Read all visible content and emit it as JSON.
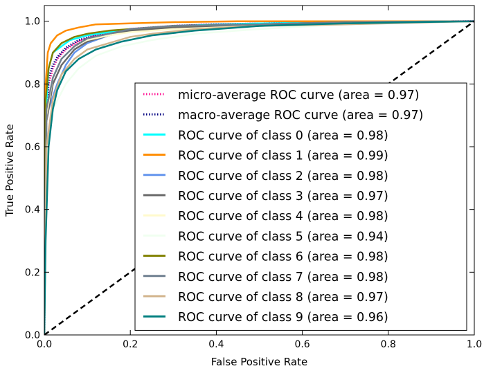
{
  "chart_data": {
    "type": "line",
    "title": "",
    "xlabel": "False Positive Rate",
    "ylabel": "True Positive Rate",
    "xlim": [
      0.0,
      1.0
    ],
    "ylim": [
      0.0,
      1.05
    ],
    "xticks": [
      "0.0",
      "0.2",
      "0.4",
      "0.6",
      "0.8",
      "1.0"
    ],
    "yticks": [
      "0.0",
      "0.2",
      "0.4",
      "0.6",
      "0.8",
      "1.0"
    ],
    "grid": false,
    "legend_position": "lower-right",
    "diagonal": {
      "x": [
        0,
        1
      ],
      "y": [
        0,
        1
      ],
      "color": "#000000",
      "style": "dashed"
    },
    "series": [
      {
        "name": "micro-average ROC curve (area = 0.97)",
        "color": "#ff1493",
        "style": "dotted",
        "x": [
          0,
          0.002,
          0.01,
          0.02,
          0.03,
          0.05,
          0.08,
          0.12,
          0.16,
          0.2,
          0.3,
          0.4,
          0.6,
          0.8,
          1.0
        ],
        "y": [
          0,
          0.62,
          0.8,
          0.85,
          0.88,
          0.91,
          0.935,
          0.955,
          0.965,
          0.975,
          0.985,
          0.99,
          0.995,
          0.998,
          1.0
        ]
      },
      {
        "name": "macro-average ROC curve (area = 0.97)",
        "color": "#000080",
        "style": "dotted",
        "x": [
          0,
          0.002,
          0.01,
          0.02,
          0.03,
          0.05,
          0.08,
          0.12,
          0.16,
          0.2,
          0.3,
          0.4,
          0.6,
          0.8,
          1.0
        ],
        "y": [
          0,
          0.6,
          0.82,
          0.86,
          0.885,
          0.915,
          0.94,
          0.955,
          0.965,
          0.975,
          0.985,
          0.99,
          0.995,
          0.998,
          1.0
        ]
      },
      {
        "name": "ROC curve of class 0 (area = 0.98)",
        "color": "#00ffff",
        "style": "solid",
        "x": [
          0,
          0.003,
          0.01,
          0.02,
          0.04,
          0.06,
          0.1,
          0.15,
          0.2,
          0.3,
          0.5,
          0.7,
          1.0
        ],
        "y": [
          0,
          0.7,
          0.85,
          0.9,
          0.92,
          0.94,
          0.955,
          0.965,
          0.975,
          0.985,
          0.993,
          0.997,
          1.0
        ]
      },
      {
        "name": "ROC curve of class 1 (area = 0.99)",
        "color": "#ff8c00",
        "style": "solid",
        "x": [
          0,
          0.003,
          0.008,
          0.015,
          0.03,
          0.05,
          0.08,
          0.12,
          0.2,
          0.3,
          0.45,
          1.0
        ],
        "y": [
          0,
          0.8,
          0.9,
          0.93,
          0.955,
          0.97,
          0.98,
          0.99,
          0.993,
          0.997,
          1.0,
          1.0
        ]
      },
      {
        "name": "ROC curve of class 2 (area = 0.98)",
        "color": "#6495ed",
        "style": "solid",
        "x": [
          0,
          0.005,
          0.02,
          0.03,
          0.05,
          0.07,
          0.1,
          0.15,
          0.2,
          0.3,
          0.5,
          0.7,
          1.0
        ],
        "y": [
          0,
          0.7,
          0.76,
          0.8,
          0.86,
          0.9,
          0.93,
          0.955,
          0.97,
          0.98,
          0.99,
          0.997,
          1.0
        ]
      },
      {
        "name": "ROC curve of class 3 (area = 0.97)",
        "color": "#696969",
        "style": "solid",
        "x": [
          0,
          0.005,
          0.02,
          0.04,
          0.07,
          0.1,
          0.15,
          0.2,
          0.3,
          0.5,
          0.7,
          1.0
        ],
        "y": [
          0,
          0.68,
          0.8,
          0.86,
          0.91,
          0.935,
          0.955,
          0.97,
          0.98,
          0.99,
          0.995,
          1.0
        ]
      },
      {
        "name": "ROC curve of class 4 (area = 0.98)",
        "color": "#fffacd",
        "style": "solid",
        "x": [
          0,
          0.005,
          0.02,
          0.04,
          0.07,
          0.1,
          0.15,
          0.2,
          0.3,
          0.5,
          0.7,
          1.0
        ],
        "y": [
          0,
          0.7,
          0.82,
          0.88,
          0.92,
          0.94,
          0.955,
          0.965,
          0.975,
          0.985,
          0.995,
          1.0
        ]
      },
      {
        "name": "ROC curve of class 5 (area = 0.94)",
        "color": "#f0fff0",
        "style": "solid",
        "x": [
          0,
          0.005,
          0.02,
          0.05,
          0.08,
          0.12,
          0.18,
          0.25,
          0.35,
          0.5,
          0.7,
          1.0
        ],
        "y": [
          0,
          0.55,
          0.72,
          0.8,
          0.85,
          0.89,
          0.92,
          0.94,
          0.96,
          0.975,
          0.99,
          1.0
        ]
      },
      {
        "name": "ROC curve of class 6 (area = 0.98)",
        "color": "#808000",
        "style": "solid",
        "x": [
          0,
          0.003,
          0.01,
          0.02,
          0.04,
          0.07,
          0.1,
          0.15,
          0.2,
          0.3,
          0.5,
          0.7,
          1.0
        ],
        "y": [
          0,
          0.75,
          0.85,
          0.9,
          0.93,
          0.95,
          0.96,
          0.97,
          0.975,
          0.985,
          0.99,
          0.997,
          1.0
        ]
      },
      {
        "name": "ROC curve of class 7 (area = 0.98)",
        "color": "#708090",
        "style": "solid",
        "x": [
          0,
          0.005,
          0.02,
          0.04,
          0.07,
          0.1,
          0.15,
          0.2,
          0.3,
          0.5,
          0.7,
          1.0
        ],
        "y": [
          0,
          0.72,
          0.82,
          0.88,
          0.92,
          0.945,
          0.96,
          0.975,
          0.985,
          0.99,
          0.997,
          1.0
        ]
      },
      {
        "name": "ROC curve of class 8 (area = 0.97)",
        "color": "#d2b48c",
        "style": "solid",
        "x": [
          0,
          0.005,
          0.02,
          0.04,
          0.07,
          0.1,
          0.15,
          0.2,
          0.25,
          0.35,
          0.5,
          0.7,
          1.0
        ],
        "y": [
          0,
          0.6,
          0.75,
          0.83,
          0.88,
          0.91,
          0.93,
          0.95,
          0.96,
          0.975,
          0.985,
          0.99,
          1.0
        ]
      },
      {
        "name": "ROC curve of class 9 (area = 0.96)",
        "color": "#008080",
        "style": "solid",
        "x": [
          0,
          0.003,
          0.01,
          0.02,
          0.03,
          0.05,
          0.08,
          0.12,
          0.18,
          0.25,
          0.35,
          0.5,
          0.7,
          1.0
        ],
        "y": [
          0,
          0.3,
          0.6,
          0.72,
          0.78,
          0.84,
          0.88,
          0.91,
          0.935,
          0.955,
          0.97,
          0.985,
          0.993,
          1.0
        ]
      }
    ]
  }
}
